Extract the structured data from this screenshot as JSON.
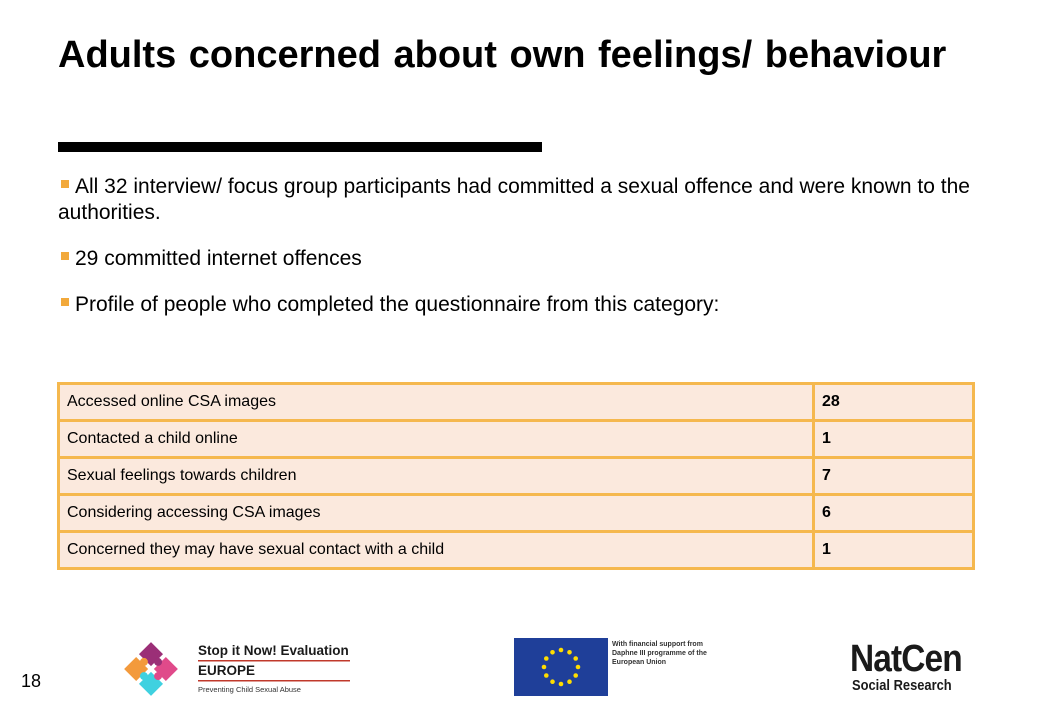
{
  "slide": {
    "title": "Adults concerned about own feelings/ behaviour",
    "bullets": [
      "All 32 interview/ focus group participants had committed a sexual offence and were known to the authorities.",
      "29 committed internet offences",
      "Profile of people who completed the questionnaire from this category:"
    ],
    "table": [
      {
        "label": "Accessed online CSA images",
        "value": "28"
      },
      {
        "label": "Contacted a child online",
        "value": "1"
      },
      {
        "label": "Sexual feelings towards children",
        "value": "7"
      },
      {
        "label": "Considering accessing CSA images",
        "value": "6"
      },
      {
        "label": "Concerned they may have sexual contact with a child",
        "value": "1"
      }
    ],
    "page_number": "18"
  },
  "footer": {
    "stop_it_now": {
      "line1": "Stop it Now! Evaluation",
      "line2": "EUROPE",
      "tagline": "Preventing Child Sexual Abuse"
    },
    "eu": {
      "text": "With financial support from Daphne III programme of the European Union"
    },
    "natcen": {
      "name": "NatCen",
      "sub": "Social Research"
    }
  },
  "colors": {
    "accent": "#f2a93b",
    "table_border": "#f5b84e",
    "table_fill": "#fbe9dd",
    "eu_blue": "#1f3f99",
    "eu_star": "#ffdd00"
  }
}
